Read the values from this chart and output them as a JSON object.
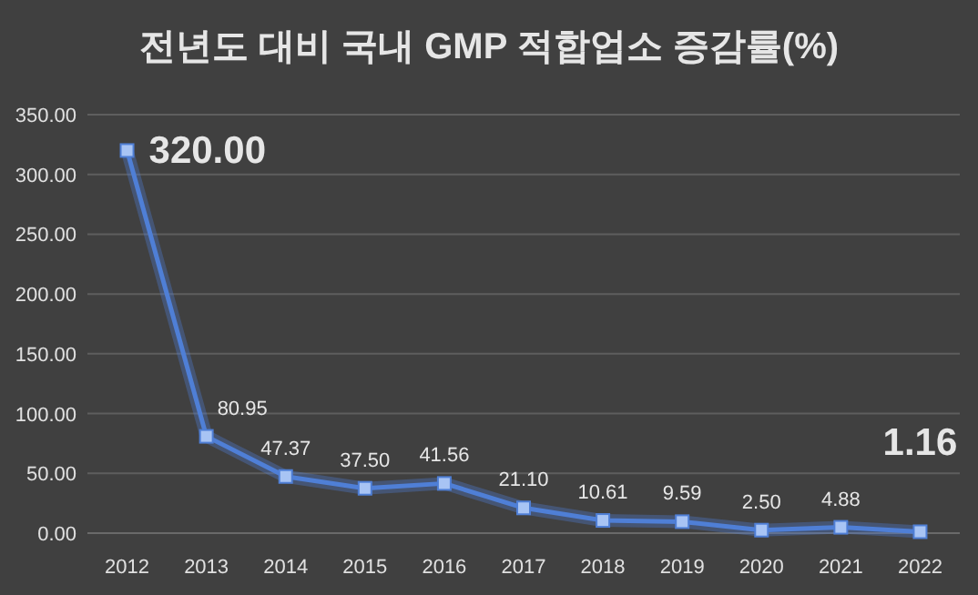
{
  "chart_data": {
    "type": "line",
    "title": "전년도 대비 국내 GMP 적합업소 증감률(%)",
    "categories": [
      "2012",
      "2013",
      "2014",
      "2015",
      "2016",
      "2017",
      "2018",
      "2019",
      "2020",
      "2021",
      "2022"
    ],
    "series": [
      {
        "color": "#4f7fd6",
        "values": [
          320,
          80.95,
          47.37,
          37.5,
          41.56,
          21.1,
          10.61,
          9.59,
          2.5,
          4.88,
          1.16
        ],
        "value_labels": [
          "320.00",
          "80.95",
          "47.37",
          "37.50",
          "41.56",
          "21.10",
          "10.61",
          "9.59",
          "2.50",
          "4.88",
          "1.16"
        ]
      }
    ],
    "ylim": [
      0,
      350
    ],
    "yticks": [
      {
        "value": 0,
        "label": "0.00"
      },
      {
        "value": 50,
        "label": "50.00"
      },
      {
        "value": 100,
        "label": "100.00"
      },
      {
        "value": 150,
        "label": "150.00"
      },
      {
        "value": 200,
        "label": "200.00"
      },
      {
        "value": 250,
        "label": "250.00"
      },
      {
        "value": 300,
        "label": "300.00"
      },
      {
        "value": 350,
        "label": "350.00"
      }
    ],
    "grid": "y",
    "marker": "square",
    "line_style": "solid"
  }
}
